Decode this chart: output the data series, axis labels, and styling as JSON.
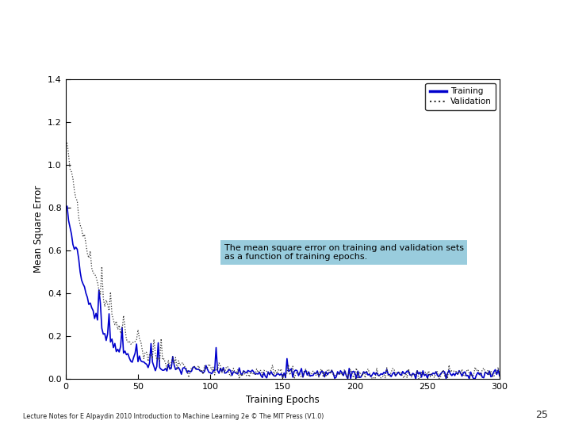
{
  "title": "",
  "xlabel": "Training Epochs",
  "ylabel": "Mean Square Error",
  "xlim": [
    0,
    300
  ],
  "ylim": [
    0,
    1.4
  ],
  "yticks": [
    0,
    0.2,
    0.4,
    0.6,
    0.8,
    1.0,
    1.2,
    1.4
  ],
  "xticks": [
    0,
    50,
    100,
    150,
    200,
    250,
    300
  ],
  "train_color": "#0000cc",
  "val_color": "#333333",
  "legend_labels": [
    "Training",
    "Validation"
  ],
  "annotation_text": "The mean square error on training and validation sets\nas a function of training epochs.",
  "annotation_box_color": "#99ccdd",
  "background_color": "#ffffff",
  "slide_bg": "#f0f8fa",
  "footer_text": "Lecture Notes for E Alpaydin 2010 Introduction to Machine Learning 2e © The MIT Press (V1.0)",
  "page_number": "25",
  "figsize": [
    7.2,
    5.4
  ],
  "dpi": 100,
  "seed": 7,
  "n_epochs": 300
}
